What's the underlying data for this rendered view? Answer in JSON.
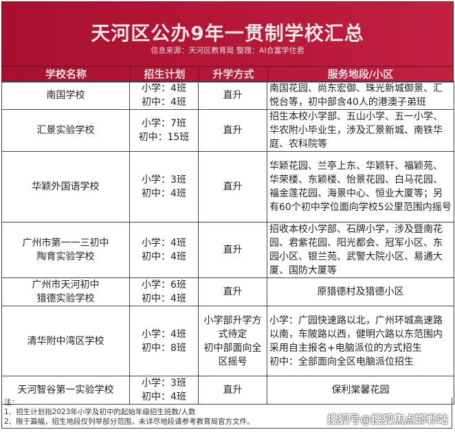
{
  "title": "天河区公办9年一贯制学校汇总",
  "subtitle": "信息来源：天河区教育局 整理：AI合富学住君",
  "headers": [
    "学校名称",
    "招生计划",
    "升学方式",
    "服务地段/小区"
  ],
  "rows": [
    {
      "name": [
        "南国学校"
      ],
      "plan": [
        "小学：4班",
        "初中：4班"
      ],
      "method": [
        "直升"
      ],
      "area": "南国花园、尚东宏御、珠光新城御景、汇悦台等，初中部含40人的港澳子弟班"
    },
    {
      "name": [
        "汇景实验学校"
      ],
      "plan": [
        "小学：7班",
        "初中：15班"
      ],
      "method": [
        "直升"
      ],
      "area": "招生本校小学部、五山小学、五一小学、华农附小毕业生，涉及汇景新城、南铁华庭、农科院等"
    },
    {
      "name": [
        "华颖外国语学校"
      ],
      "plan": [
        "小学：3班",
        "初中：4班"
      ],
      "method": [
        "直升"
      ],
      "area": "华颖花园、兰亭上东、华颖轩、福颖苑、华荣楼、东颖楼、怡景花园、白马花园、福金莲花园、海景中心、恒业大厦等；另有60个初中学位面向学校5公里范围内摇号"
    },
    {
      "name": [
        "广州市第一一三初中",
        "陶育实验学校"
      ],
      "plan": [
        "小学：4班",
        "初中：4班"
      ],
      "method": [
        "直升"
      ],
      "area": "招收本校小学部、石牌小学，涉及暨南花园、君紫花园、阳光都会、冠军小区、东园小区、银兰苑、武警大院小区、易通大厦、国防大厦等"
    },
    {
      "name": [
        "广州市天河初中",
        "猎德实验学校"
      ],
      "plan": [
        "小学：6班",
        "初中：4班"
      ],
      "method": [
        "直升"
      ],
      "area": "原猎德村及猎德小区"
    },
    {
      "name": [
        "清华附中湾区学校"
      ],
      "plan": [
        "小学：4班",
        "初中：8班"
      ],
      "method": [
        "小学部升学方式待定",
        "初中部面向全区摇号"
      ],
      "area": "小学：广园快速路以北，广州环城高速路以南，车陂路以西，健明六路以东范围内采用自主报名+电脑派位的方式招生\n初中：全部面向全区电脑派位招生"
    },
    {
      "name": [
        "天河智谷第一实验学校"
      ],
      "plan": [
        "小学：3班",
        "初中：4班"
      ],
      "method": [
        "直升"
      ],
      "area": "保利棠馨花园"
    }
  ],
  "notes": [
    "注：",
    "1、招生计划指2023年小学及初中的起始年级招生班数/人数",
    "2、限于篇幅，招生地段仅列举部分范围，未详尽地段请参考教育局官方文件。"
  ],
  "watermark": "搜狐号@搜狐焦点邯郸站",
  "colors": {
    "banner": "#b5173a",
    "banner_text": "#f6e6ea"
  }
}
